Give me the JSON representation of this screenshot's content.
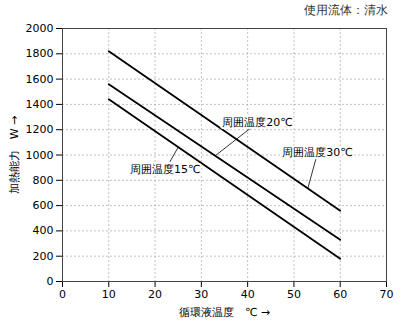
{
  "chart_data": {
    "type": "line",
    "title": "使用流体：清水",
    "x_label": "循環液温度　℃",
    "y_label": "加熱能力　W",
    "x": [
      10,
      60
    ],
    "series": [
      {
        "name": "周囲温度30℃",
        "color": "#000000",
        "values": [
          1820,
          560
        ]
      },
      {
        "name": "周囲温度20℃",
        "color": "#000000",
        "values": [
          1560,
          330
        ]
      },
      {
        "name": "周囲温度15℃",
        "color": "#000000",
        "values": [
          1440,
          180
        ]
      }
    ],
    "xlim": [
      0,
      70
    ],
    "xticks": [
      0,
      10,
      20,
      30,
      40,
      50,
      60,
      70
    ],
    "ylim": [
      0,
      2000
    ],
    "yticks": [
      0,
      200,
      400,
      600,
      800,
      1000,
      1200,
      1400,
      1600,
      1800,
      2000
    ],
    "grid": true
  }
}
